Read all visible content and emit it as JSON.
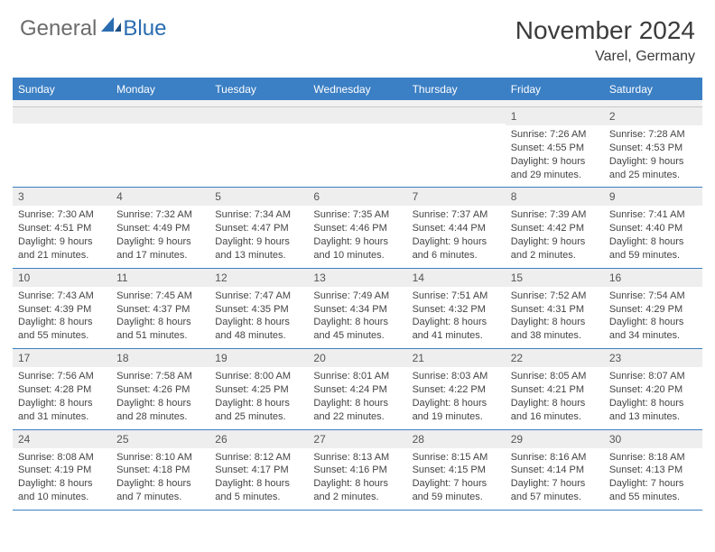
{
  "brand": {
    "part1": "General",
    "part2": "Blue"
  },
  "title": "November 2024",
  "location": "Varel, Germany",
  "colors": {
    "header_blue": "#3b7fc4",
    "row_divider": "#3b7fc4",
    "day_num_bg": "#eeeeee",
    "text": "#444444"
  },
  "weekdays": [
    "Sunday",
    "Monday",
    "Tuesday",
    "Wednesday",
    "Thursday",
    "Friday",
    "Saturday"
  ],
  "weeks": [
    [
      {
        "n": "",
        "sr": "",
        "ss": "",
        "dl": ""
      },
      {
        "n": "",
        "sr": "",
        "ss": "",
        "dl": ""
      },
      {
        "n": "",
        "sr": "",
        "ss": "",
        "dl": ""
      },
      {
        "n": "",
        "sr": "",
        "ss": "",
        "dl": ""
      },
      {
        "n": "",
        "sr": "",
        "ss": "",
        "dl": ""
      },
      {
        "n": "1",
        "sr": "Sunrise: 7:26 AM",
        "ss": "Sunset: 4:55 PM",
        "dl": "Daylight: 9 hours and 29 minutes."
      },
      {
        "n": "2",
        "sr": "Sunrise: 7:28 AM",
        "ss": "Sunset: 4:53 PM",
        "dl": "Daylight: 9 hours and 25 minutes."
      }
    ],
    [
      {
        "n": "3",
        "sr": "Sunrise: 7:30 AM",
        "ss": "Sunset: 4:51 PM",
        "dl": "Daylight: 9 hours and 21 minutes."
      },
      {
        "n": "4",
        "sr": "Sunrise: 7:32 AM",
        "ss": "Sunset: 4:49 PM",
        "dl": "Daylight: 9 hours and 17 minutes."
      },
      {
        "n": "5",
        "sr": "Sunrise: 7:34 AM",
        "ss": "Sunset: 4:47 PM",
        "dl": "Daylight: 9 hours and 13 minutes."
      },
      {
        "n": "6",
        "sr": "Sunrise: 7:35 AM",
        "ss": "Sunset: 4:46 PM",
        "dl": "Daylight: 9 hours and 10 minutes."
      },
      {
        "n": "7",
        "sr": "Sunrise: 7:37 AM",
        "ss": "Sunset: 4:44 PM",
        "dl": "Daylight: 9 hours and 6 minutes."
      },
      {
        "n": "8",
        "sr": "Sunrise: 7:39 AM",
        "ss": "Sunset: 4:42 PM",
        "dl": "Daylight: 9 hours and 2 minutes."
      },
      {
        "n": "9",
        "sr": "Sunrise: 7:41 AM",
        "ss": "Sunset: 4:40 PM",
        "dl": "Daylight: 8 hours and 59 minutes."
      }
    ],
    [
      {
        "n": "10",
        "sr": "Sunrise: 7:43 AM",
        "ss": "Sunset: 4:39 PM",
        "dl": "Daylight: 8 hours and 55 minutes."
      },
      {
        "n": "11",
        "sr": "Sunrise: 7:45 AM",
        "ss": "Sunset: 4:37 PM",
        "dl": "Daylight: 8 hours and 51 minutes."
      },
      {
        "n": "12",
        "sr": "Sunrise: 7:47 AM",
        "ss": "Sunset: 4:35 PM",
        "dl": "Daylight: 8 hours and 48 minutes."
      },
      {
        "n": "13",
        "sr": "Sunrise: 7:49 AM",
        "ss": "Sunset: 4:34 PM",
        "dl": "Daylight: 8 hours and 45 minutes."
      },
      {
        "n": "14",
        "sr": "Sunrise: 7:51 AM",
        "ss": "Sunset: 4:32 PM",
        "dl": "Daylight: 8 hours and 41 minutes."
      },
      {
        "n": "15",
        "sr": "Sunrise: 7:52 AM",
        "ss": "Sunset: 4:31 PM",
        "dl": "Daylight: 8 hours and 38 minutes."
      },
      {
        "n": "16",
        "sr": "Sunrise: 7:54 AM",
        "ss": "Sunset: 4:29 PM",
        "dl": "Daylight: 8 hours and 34 minutes."
      }
    ],
    [
      {
        "n": "17",
        "sr": "Sunrise: 7:56 AM",
        "ss": "Sunset: 4:28 PM",
        "dl": "Daylight: 8 hours and 31 minutes."
      },
      {
        "n": "18",
        "sr": "Sunrise: 7:58 AM",
        "ss": "Sunset: 4:26 PM",
        "dl": "Daylight: 8 hours and 28 minutes."
      },
      {
        "n": "19",
        "sr": "Sunrise: 8:00 AM",
        "ss": "Sunset: 4:25 PM",
        "dl": "Daylight: 8 hours and 25 minutes."
      },
      {
        "n": "20",
        "sr": "Sunrise: 8:01 AM",
        "ss": "Sunset: 4:24 PM",
        "dl": "Daylight: 8 hours and 22 minutes."
      },
      {
        "n": "21",
        "sr": "Sunrise: 8:03 AM",
        "ss": "Sunset: 4:22 PM",
        "dl": "Daylight: 8 hours and 19 minutes."
      },
      {
        "n": "22",
        "sr": "Sunrise: 8:05 AM",
        "ss": "Sunset: 4:21 PM",
        "dl": "Daylight: 8 hours and 16 minutes."
      },
      {
        "n": "23",
        "sr": "Sunrise: 8:07 AM",
        "ss": "Sunset: 4:20 PM",
        "dl": "Daylight: 8 hours and 13 minutes."
      }
    ],
    [
      {
        "n": "24",
        "sr": "Sunrise: 8:08 AM",
        "ss": "Sunset: 4:19 PM",
        "dl": "Daylight: 8 hours and 10 minutes."
      },
      {
        "n": "25",
        "sr": "Sunrise: 8:10 AM",
        "ss": "Sunset: 4:18 PM",
        "dl": "Daylight: 8 hours and 7 minutes."
      },
      {
        "n": "26",
        "sr": "Sunrise: 8:12 AM",
        "ss": "Sunset: 4:17 PM",
        "dl": "Daylight: 8 hours and 5 minutes."
      },
      {
        "n": "27",
        "sr": "Sunrise: 8:13 AM",
        "ss": "Sunset: 4:16 PM",
        "dl": "Daylight: 8 hours and 2 minutes."
      },
      {
        "n": "28",
        "sr": "Sunrise: 8:15 AM",
        "ss": "Sunset: 4:15 PM",
        "dl": "Daylight: 7 hours and 59 minutes."
      },
      {
        "n": "29",
        "sr": "Sunrise: 8:16 AM",
        "ss": "Sunset: 4:14 PM",
        "dl": "Daylight: 7 hours and 57 minutes."
      },
      {
        "n": "30",
        "sr": "Sunrise: 8:18 AM",
        "ss": "Sunset: 4:13 PM",
        "dl": "Daylight: 7 hours and 55 minutes."
      }
    ]
  ]
}
